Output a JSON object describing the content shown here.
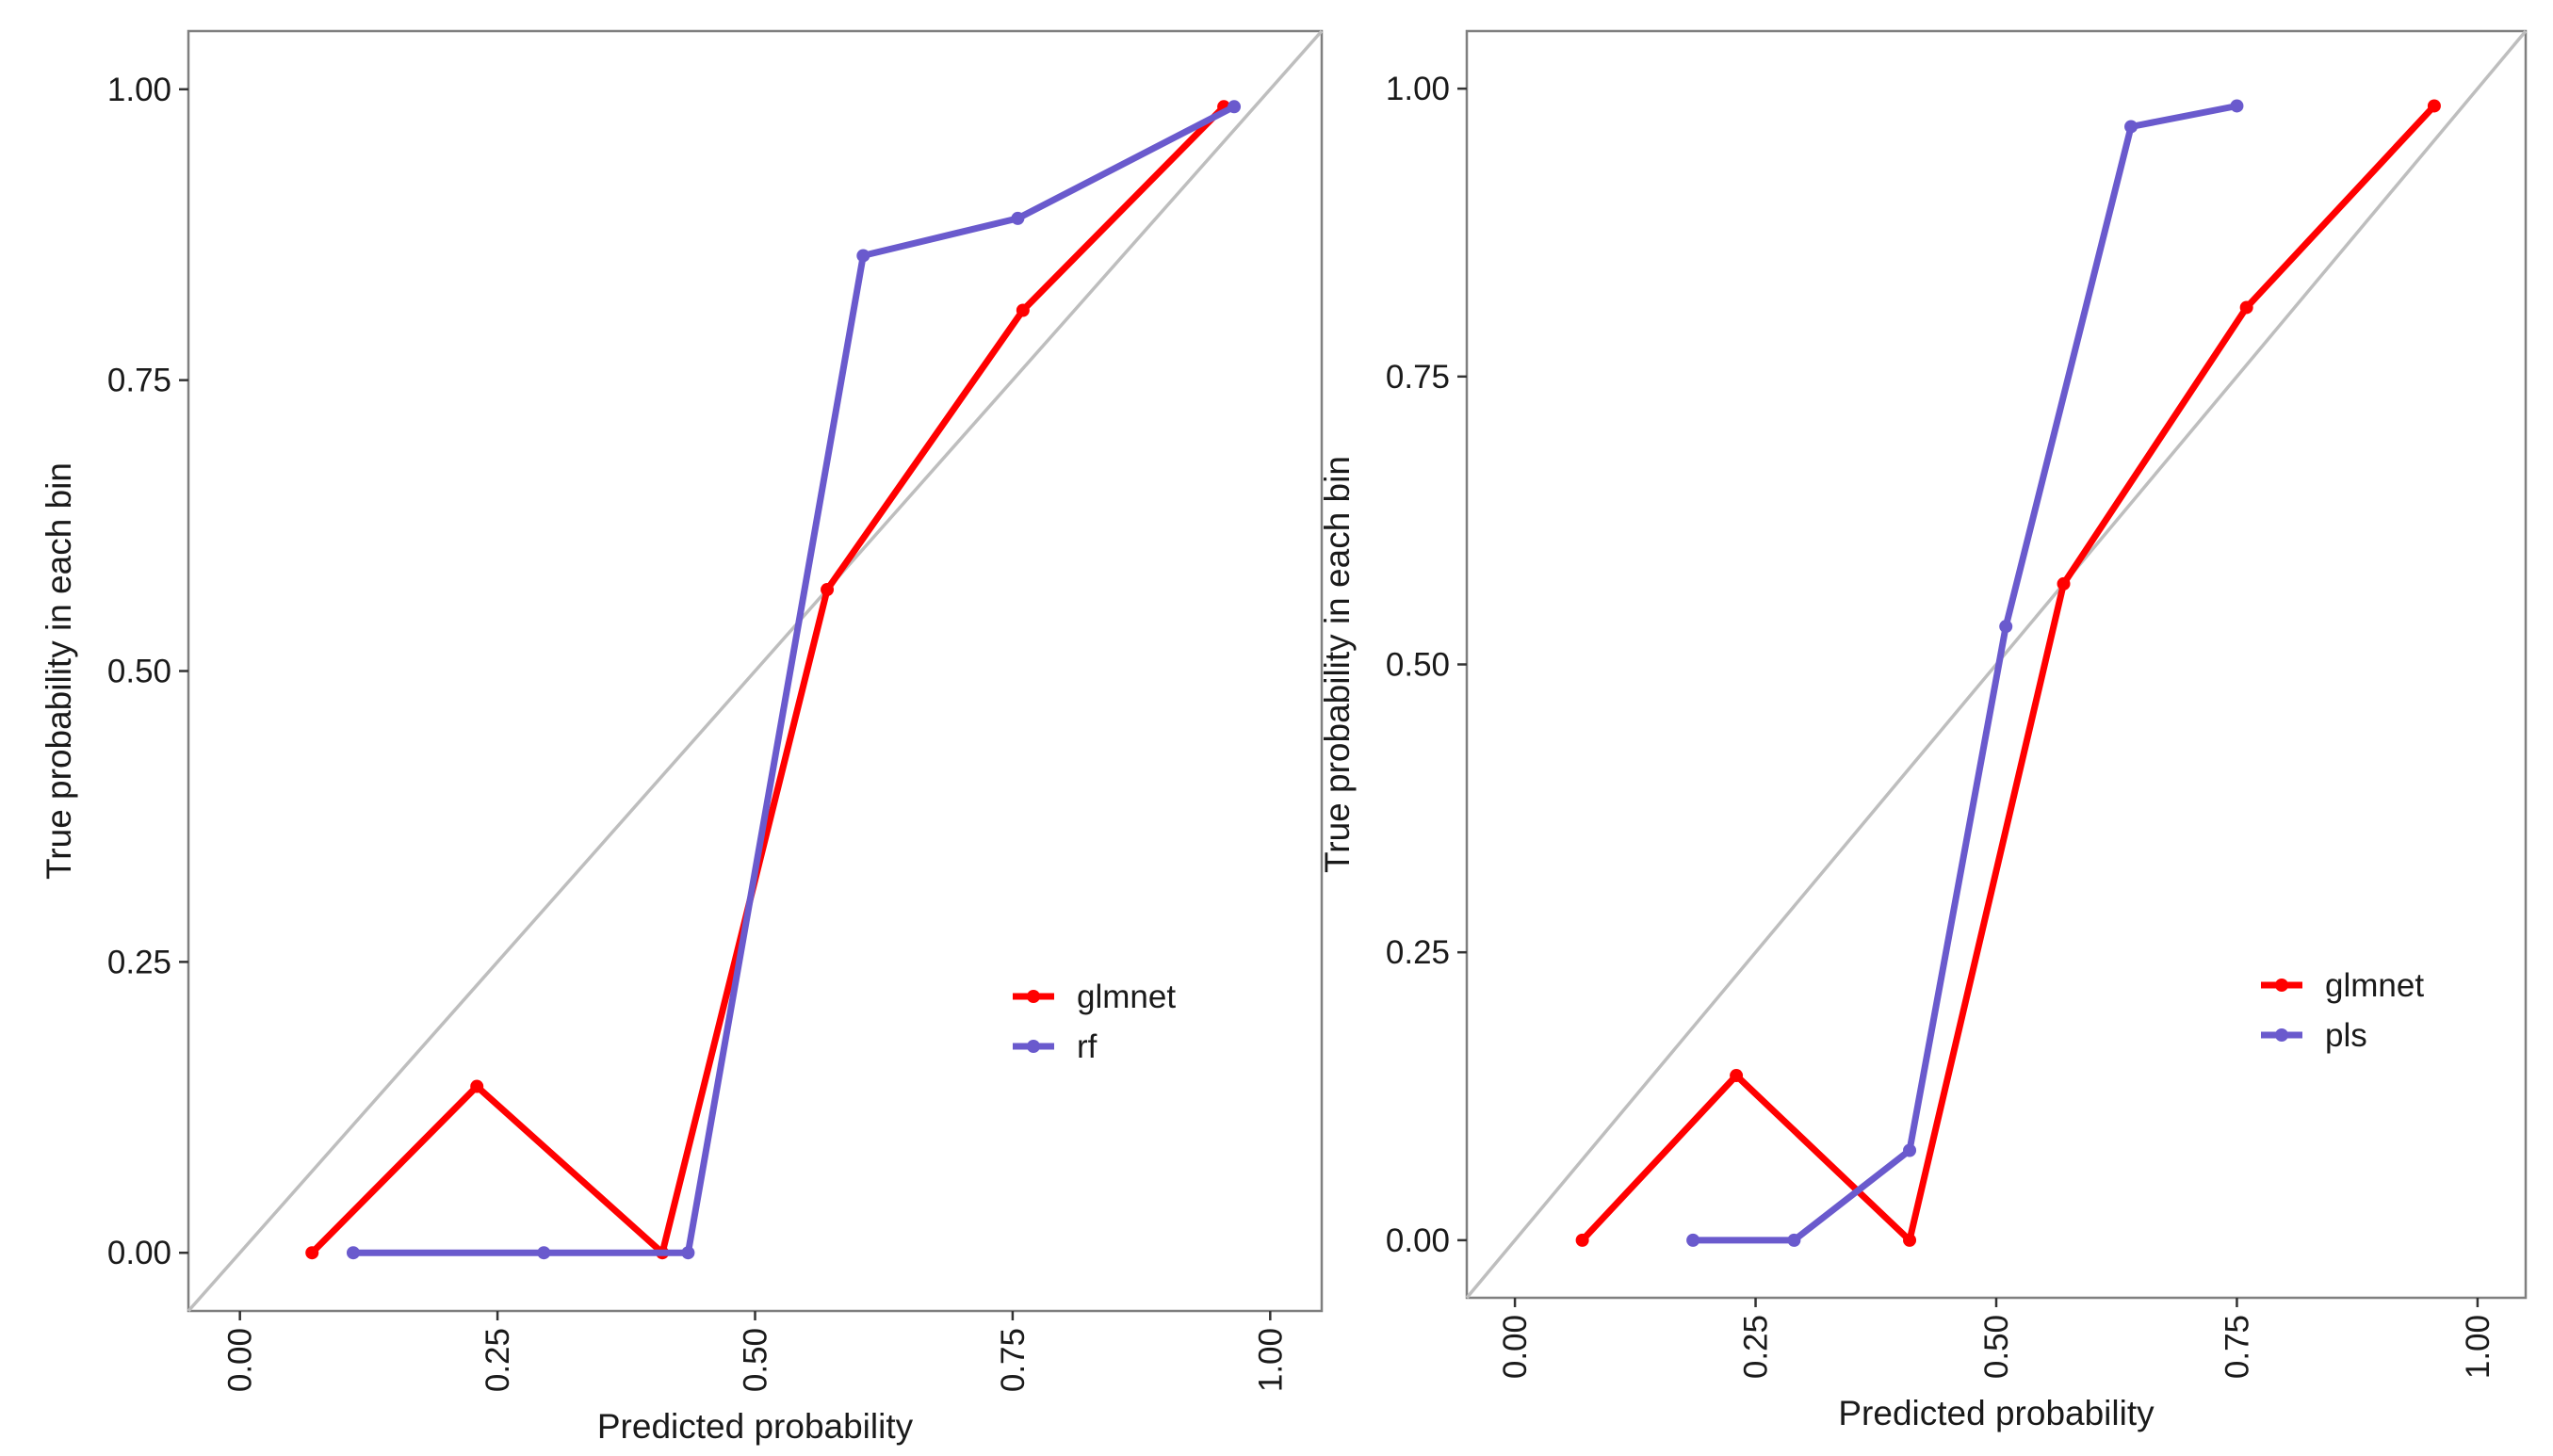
{
  "colors": {
    "glmnet": "#ff0000",
    "second": "#6a5acd",
    "diagonal": "#bebebe",
    "frame": "#7f7f7f"
  },
  "chart_data": [
    {
      "type": "line",
      "xlabel": "Predicted probability",
      "ylabel": "True probability in each bin",
      "xlim": [
        -0.05,
        1.05
      ],
      "ylim": [
        -0.05,
        1.05
      ],
      "x_ticks": [
        "0.00",
        "0.25",
        "0.50",
        "0.75",
        "1.00"
      ],
      "y_ticks": [
        "0.00",
        "0.25",
        "0.50",
        "0.75",
        "1.00"
      ],
      "reference_line": "y = x",
      "legend_position": "bottom-right",
      "series": [
        {
          "name": "glmnet",
          "x": [
            0.07,
            0.23,
            0.41,
            0.57,
            0.76,
            0.955
          ],
          "y": [
            0.0,
            0.143,
            0.0,
            0.57,
            0.81,
            0.985
          ]
        },
        {
          "name": "rf",
          "x": [
            0.11,
            0.295,
            0.435,
            0.605,
            0.755,
            0.965
          ],
          "y": [
            0.0,
            0.0,
            0.0,
            0.857,
            0.889,
            0.985
          ]
        }
      ]
    },
    {
      "type": "line",
      "xlabel": "Predicted probability",
      "ylabel": "True probability in each bin",
      "xlim": [
        -0.05,
        1.05
      ],
      "ylim": [
        -0.05,
        1.05
      ],
      "x_ticks": [
        "0.00",
        "0.25",
        "0.50",
        "0.75",
        "1.00"
      ],
      "y_ticks": [
        "0.00",
        "0.25",
        "0.50",
        "0.75",
        "1.00"
      ],
      "reference_line": "y = x",
      "legend_position": "bottom-right",
      "series": [
        {
          "name": "glmnet",
          "x": [
            0.07,
            0.23,
            0.41,
            0.57,
            0.76,
            0.955
          ],
          "y": [
            0.0,
            0.143,
            0.0,
            0.57,
            0.81,
            0.985
          ]
        },
        {
          "name": "pls",
          "x": [
            0.185,
            0.29,
            0.41,
            0.51,
            0.64,
            0.75
          ],
          "y": [
            0.0,
            0.0,
            0.078,
            0.533,
            0.967,
            0.985
          ]
        }
      ]
    }
  ]
}
